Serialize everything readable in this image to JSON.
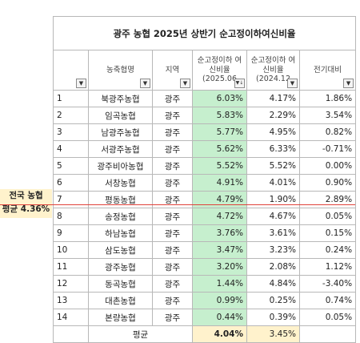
{
  "title": "광주 농협 2025년 상반기 순고정이하여신비율",
  "headers": {
    "name": "농축협명",
    "region": "지역",
    "ratio_2025": "순고정이하 여신비율 (2025.06",
    "ratio_2024": "순고정이하 여신비율 (2024.12",
    "change": "전기대비"
  },
  "rows": [
    {
      "idx": "1",
      "name": "북광주농협",
      "region": "광주",
      "r2025": "6.03%",
      "r2024": "4.17%",
      "change": "1.86%"
    },
    {
      "idx": "2",
      "name": "임곡농협",
      "region": "광주",
      "r2025": "5.83%",
      "r2024": "2.29%",
      "change": "3.54%"
    },
    {
      "idx": "3",
      "name": "남광주농협",
      "region": "광주",
      "r2025": "5.77%",
      "r2024": "4.95%",
      "change": "0.82%"
    },
    {
      "idx": "4",
      "name": "서광주농협",
      "region": "광주",
      "r2025": "5.62%",
      "r2024": "6.33%",
      "change": "-0.71%"
    },
    {
      "idx": "5",
      "name": "광주비아농협",
      "region": "광주",
      "r2025": "5.52%",
      "r2024": "5.52%",
      "change": "0.00%"
    },
    {
      "idx": "6",
      "name": "서창농협",
      "region": "광주",
      "r2025": "4.91%",
      "r2024": "4.01%",
      "change": "0.90%"
    },
    {
      "idx": "7",
      "name": "평동농협",
      "region": "광주",
      "r2025": "4.79%",
      "r2024": "1.90%",
      "change": "2.89%"
    },
    {
      "idx": "8",
      "name": "송정농협",
      "region": "광주",
      "r2025": "4.72%",
      "r2024": "4.67%",
      "change": "0.05%"
    },
    {
      "idx": "9",
      "name": "하남농협",
      "region": "광주",
      "r2025": "3.76%",
      "r2024": "3.61%",
      "change": "0.15%"
    },
    {
      "idx": "10",
      "name": "삼도농협",
      "region": "광주",
      "r2025": "3.47%",
      "r2024": "3.23%",
      "change": "0.24%"
    },
    {
      "idx": "11",
      "name": "광주농협",
      "region": "광주",
      "r2025": "3.20%",
      "r2024": "2.08%",
      "change": "1.12%"
    },
    {
      "idx": "12",
      "name": "동곡농협",
      "region": "광주",
      "r2025": "1.44%",
      "r2024": "4.84%",
      "change": "-3.40%"
    },
    {
      "idx": "13",
      "name": "대촌농협",
      "region": "광주",
      "r2025": "0.99%",
      "r2024": "0.25%",
      "change": "0.74%"
    },
    {
      "idx": "14",
      "name": "본량농협",
      "region": "광주",
      "r2025": "0.44%",
      "r2024": "0.39%",
      "change": "0.05%"
    }
  ],
  "total": {
    "label": "평균",
    "r2025": "4.04%",
    "r2024": "3.45%"
  },
  "note": {
    "line1": "전국 농협",
    "line2": "평균 4.36%"
  },
  "colors": {
    "highlight_green": "#c6efce",
    "highlight_yellow": "#fff2cc",
    "divider_red": "#e0413a"
  },
  "icons": {
    "filter": "filter-dropdown-icon",
    "sorted": "sort-descending-icon"
  }
}
